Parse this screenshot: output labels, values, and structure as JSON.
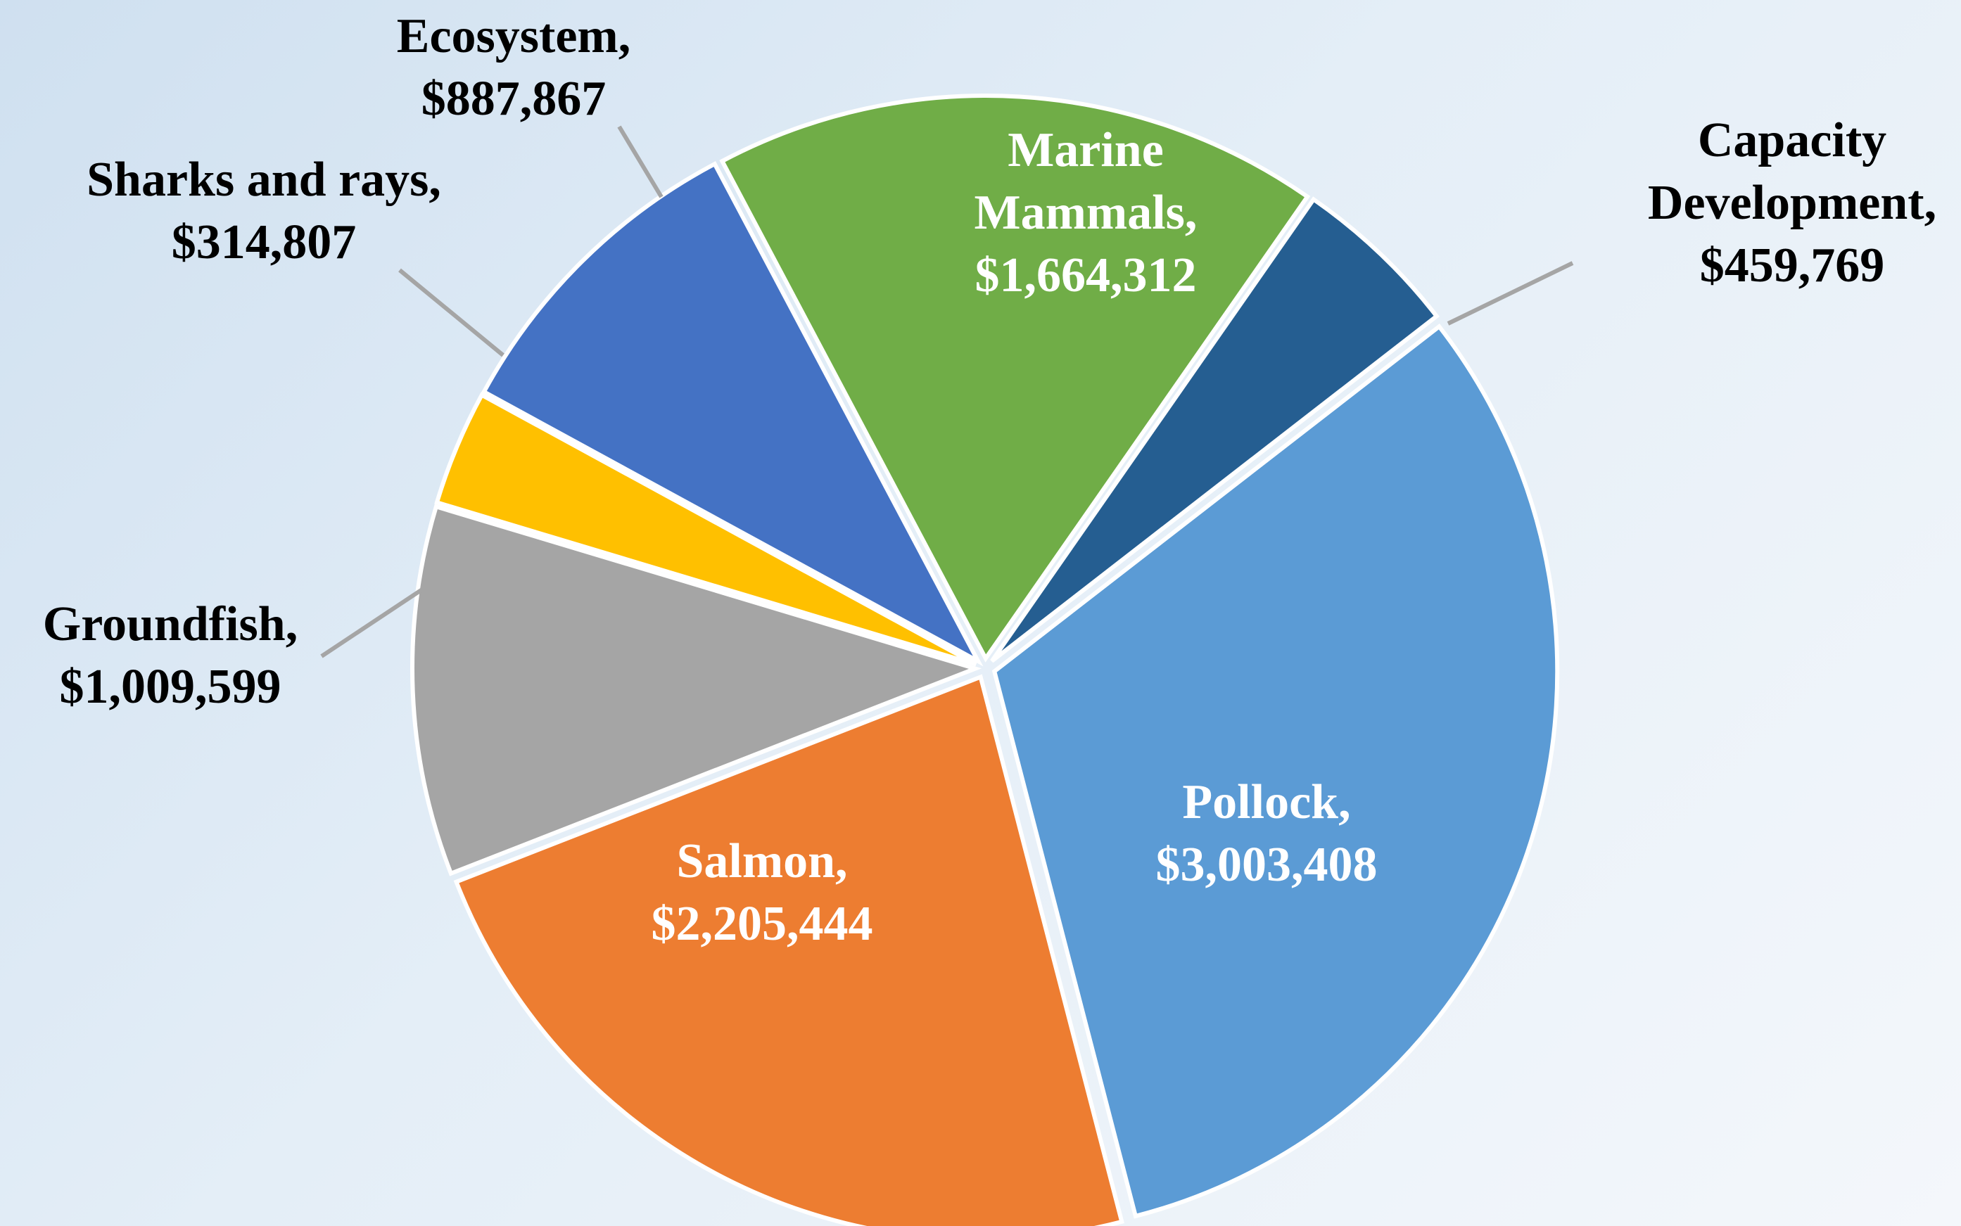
{
  "chart_data": {
    "type": "pie",
    "title": "",
    "legend": "none",
    "slices": [
      {
        "category": "Pollock",
        "value": 3003408,
        "label_name": "Pollock,",
        "label_value": "$3,003,408",
        "color": "#5b9bd5",
        "label_color": "#ffffff",
        "label_lines": [
          "Pollock,",
          "$3,003,408"
        ]
      },
      {
        "category": "Salmon",
        "value": 2205444,
        "label_name": "Salmon,",
        "label_value": "$2,205,444",
        "color": "#ed7d31",
        "label_color": "#ffffff",
        "label_lines": [
          "Salmon,",
          "$2,205,444"
        ]
      },
      {
        "category": "Groundfish",
        "value": 1009599,
        "label_name": "Groundfish,",
        "label_value": "$1,009,599",
        "color": "#a5a5a5",
        "label_color": "#000000",
        "label_lines": [
          "Groundfish,",
          "$1,009,599"
        ]
      },
      {
        "category": "Sharks and rays",
        "value": 314807,
        "label_name": "Sharks and rays,",
        "label_value": "$314,807",
        "color": "#ffc000",
        "label_color": "#000000",
        "label_lines": [
          "Sharks and rays,",
          "$314,807"
        ]
      },
      {
        "category": "Ecosystem",
        "value": 887867,
        "label_name": "Ecosystem,",
        "label_value": "$887,867",
        "color": "#4472c4",
        "label_color": "#000000",
        "label_lines": [
          "Ecosystem,",
          "$887,867"
        ]
      },
      {
        "category": "Marine Mammals",
        "value": 1664312,
        "label_name": "Marine Mammals,",
        "label_value": "$1,664,312",
        "color": "#70ad47",
        "label_color": "#ffffff",
        "label_lines": [
          "Marine",
          "Mammals,",
          "$1,664,312"
        ]
      },
      {
        "category": "Capacity Development",
        "value": 459769,
        "label_name": "Capacity Development,",
        "label_value": "$459,769",
        "color": "#255e91",
        "label_color": "#000000",
        "label_lines": [
          "Capacity",
          "Development,",
          "$459,769"
        ]
      }
    ]
  }
}
